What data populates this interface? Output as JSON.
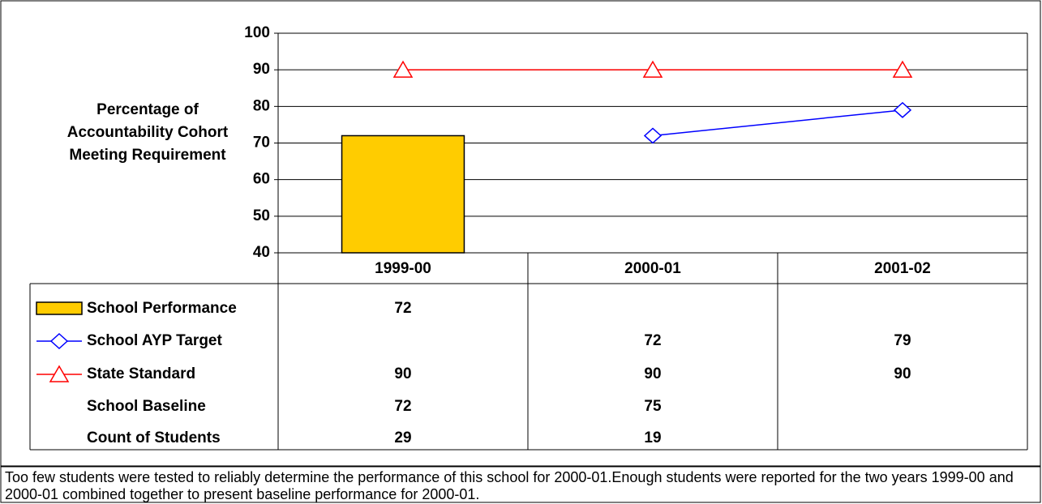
{
  "chart_data": {
    "type": "bar_line_table",
    "y_label": "Percentage of Accountability Cohort Meeting Requirement",
    "categories": [
      "1999-00",
      "2000-01",
      "2001-02"
    ],
    "ylim": [
      40,
      100
    ],
    "yticks": [
      40,
      50,
      60,
      70,
      80,
      90,
      100
    ],
    "grid": true,
    "series": [
      {
        "name": "School Performance",
        "type": "bar",
        "color": "#FFCC00",
        "values": [
          72,
          null,
          null
        ]
      },
      {
        "name": "School AYP Target",
        "type": "line",
        "marker": "diamond",
        "color": "#0000FF",
        "values": [
          null,
          72,
          79
        ]
      },
      {
        "name": "State Standard",
        "type": "line",
        "marker": "triangle",
        "color": "#FF0000",
        "values": [
          90,
          90,
          90
        ]
      }
    ],
    "table_rows": [
      {
        "name": "School Baseline",
        "values": [
          72,
          75,
          null
        ]
      },
      {
        "name": "Count of Students",
        "values": [
          29,
          19,
          null
        ]
      }
    ],
    "note": "Too few students were tested to reliably determine the performance of this school for 2000-01.Enough students were reported for the two years 1999-00 and 2000-01 combined together to present baseline performance for 2000-01."
  }
}
